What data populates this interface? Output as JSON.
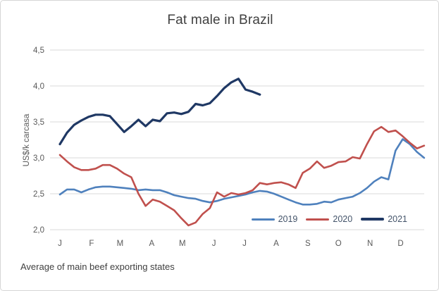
{
  "chart": {
    "title": "Fat male in Brazil",
    "footnote": "Average of main beef exporting states"
  },
  "chart_data": {
    "type": "line",
    "title": "Fat male in Brazil",
    "xlabel": "",
    "ylabel": "US$/k carcasa",
    "footnote": "Average of main beef exporting states",
    "x_unit": "weekly points, January through December",
    "month_labels": [
      "J",
      "F",
      "M",
      "A",
      "M",
      "J",
      "J",
      "A",
      "S",
      "O",
      "N",
      "D"
    ],
    "ylim": [
      2.0,
      4.5
    ],
    "yticks": [
      2.0,
      2.5,
      3.0,
      3.5,
      4.0,
      4.5
    ],
    "ytick_labels": [
      "2,0",
      "2,5",
      "3,0",
      "3,5",
      "4,0",
      "4,5"
    ],
    "grid": true,
    "grid_color": "#d9d9d9",
    "axis_text_color": "#595959",
    "legend_position": "inside-bottom-right",
    "series": [
      {
        "name": "2019",
        "color": "#4f81bd",
        "values": [
          2.49,
          2.56,
          2.56,
          2.52,
          2.56,
          2.59,
          2.6,
          2.6,
          2.59,
          2.58,
          2.57,
          2.55,
          2.56,
          2.55,
          2.55,
          2.52,
          2.48,
          2.46,
          2.44,
          2.43,
          2.4,
          2.38,
          2.4,
          2.43,
          2.45,
          2.47,
          2.49,
          2.52,
          2.54,
          2.53,
          2.5,
          2.46,
          2.42,
          2.38,
          2.35,
          2.35,
          2.36,
          2.39,
          2.38,
          2.42,
          2.44,
          2.46,
          2.51,
          2.58,
          2.67,
          2.73,
          2.7,
          3.1,
          3.26,
          3.19,
          3.08,
          3.0
        ]
      },
      {
        "name": "2020",
        "color": "#c0504d",
        "values": [
          3.04,
          2.95,
          2.87,
          2.83,
          2.83,
          2.85,
          2.9,
          2.9,
          2.85,
          2.78,
          2.73,
          2.5,
          2.33,
          2.42,
          2.39,
          2.33,
          2.27,
          2.16,
          2.06,
          2.1,
          2.22,
          2.3,
          2.52,
          2.46,
          2.51,
          2.49,
          2.51,
          2.55,
          2.65,
          2.63,
          2.65,
          2.66,
          2.63,
          2.58,
          2.79,
          2.85,
          2.95,
          2.86,
          2.89,
          2.94,
          2.95,
          3.01,
          2.99,
          3.19,
          3.37,
          3.43,
          3.36,
          3.38,
          3.3,
          3.21,
          3.13,
          3.17
        ]
      },
      {
        "name": "2021",
        "color": "#1f3864",
        "values": [
          3.19,
          3.35,
          3.46,
          3.52,
          3.57,
          3.6,
          3.6,
          3.58,
          3.47,
          3.36,
          3.44,
          3.53,
          3.44,
          3.53,
          3.51,
          3.62,
          3.63,
          3.61,
          3.64,
          3.75,
          3.73,
          3.76,
          3.86,
          3.97,
          4.05,
          4.1,
          3.95,
          3.92,
          3.88
        ]
      }
    ]
  }
}
